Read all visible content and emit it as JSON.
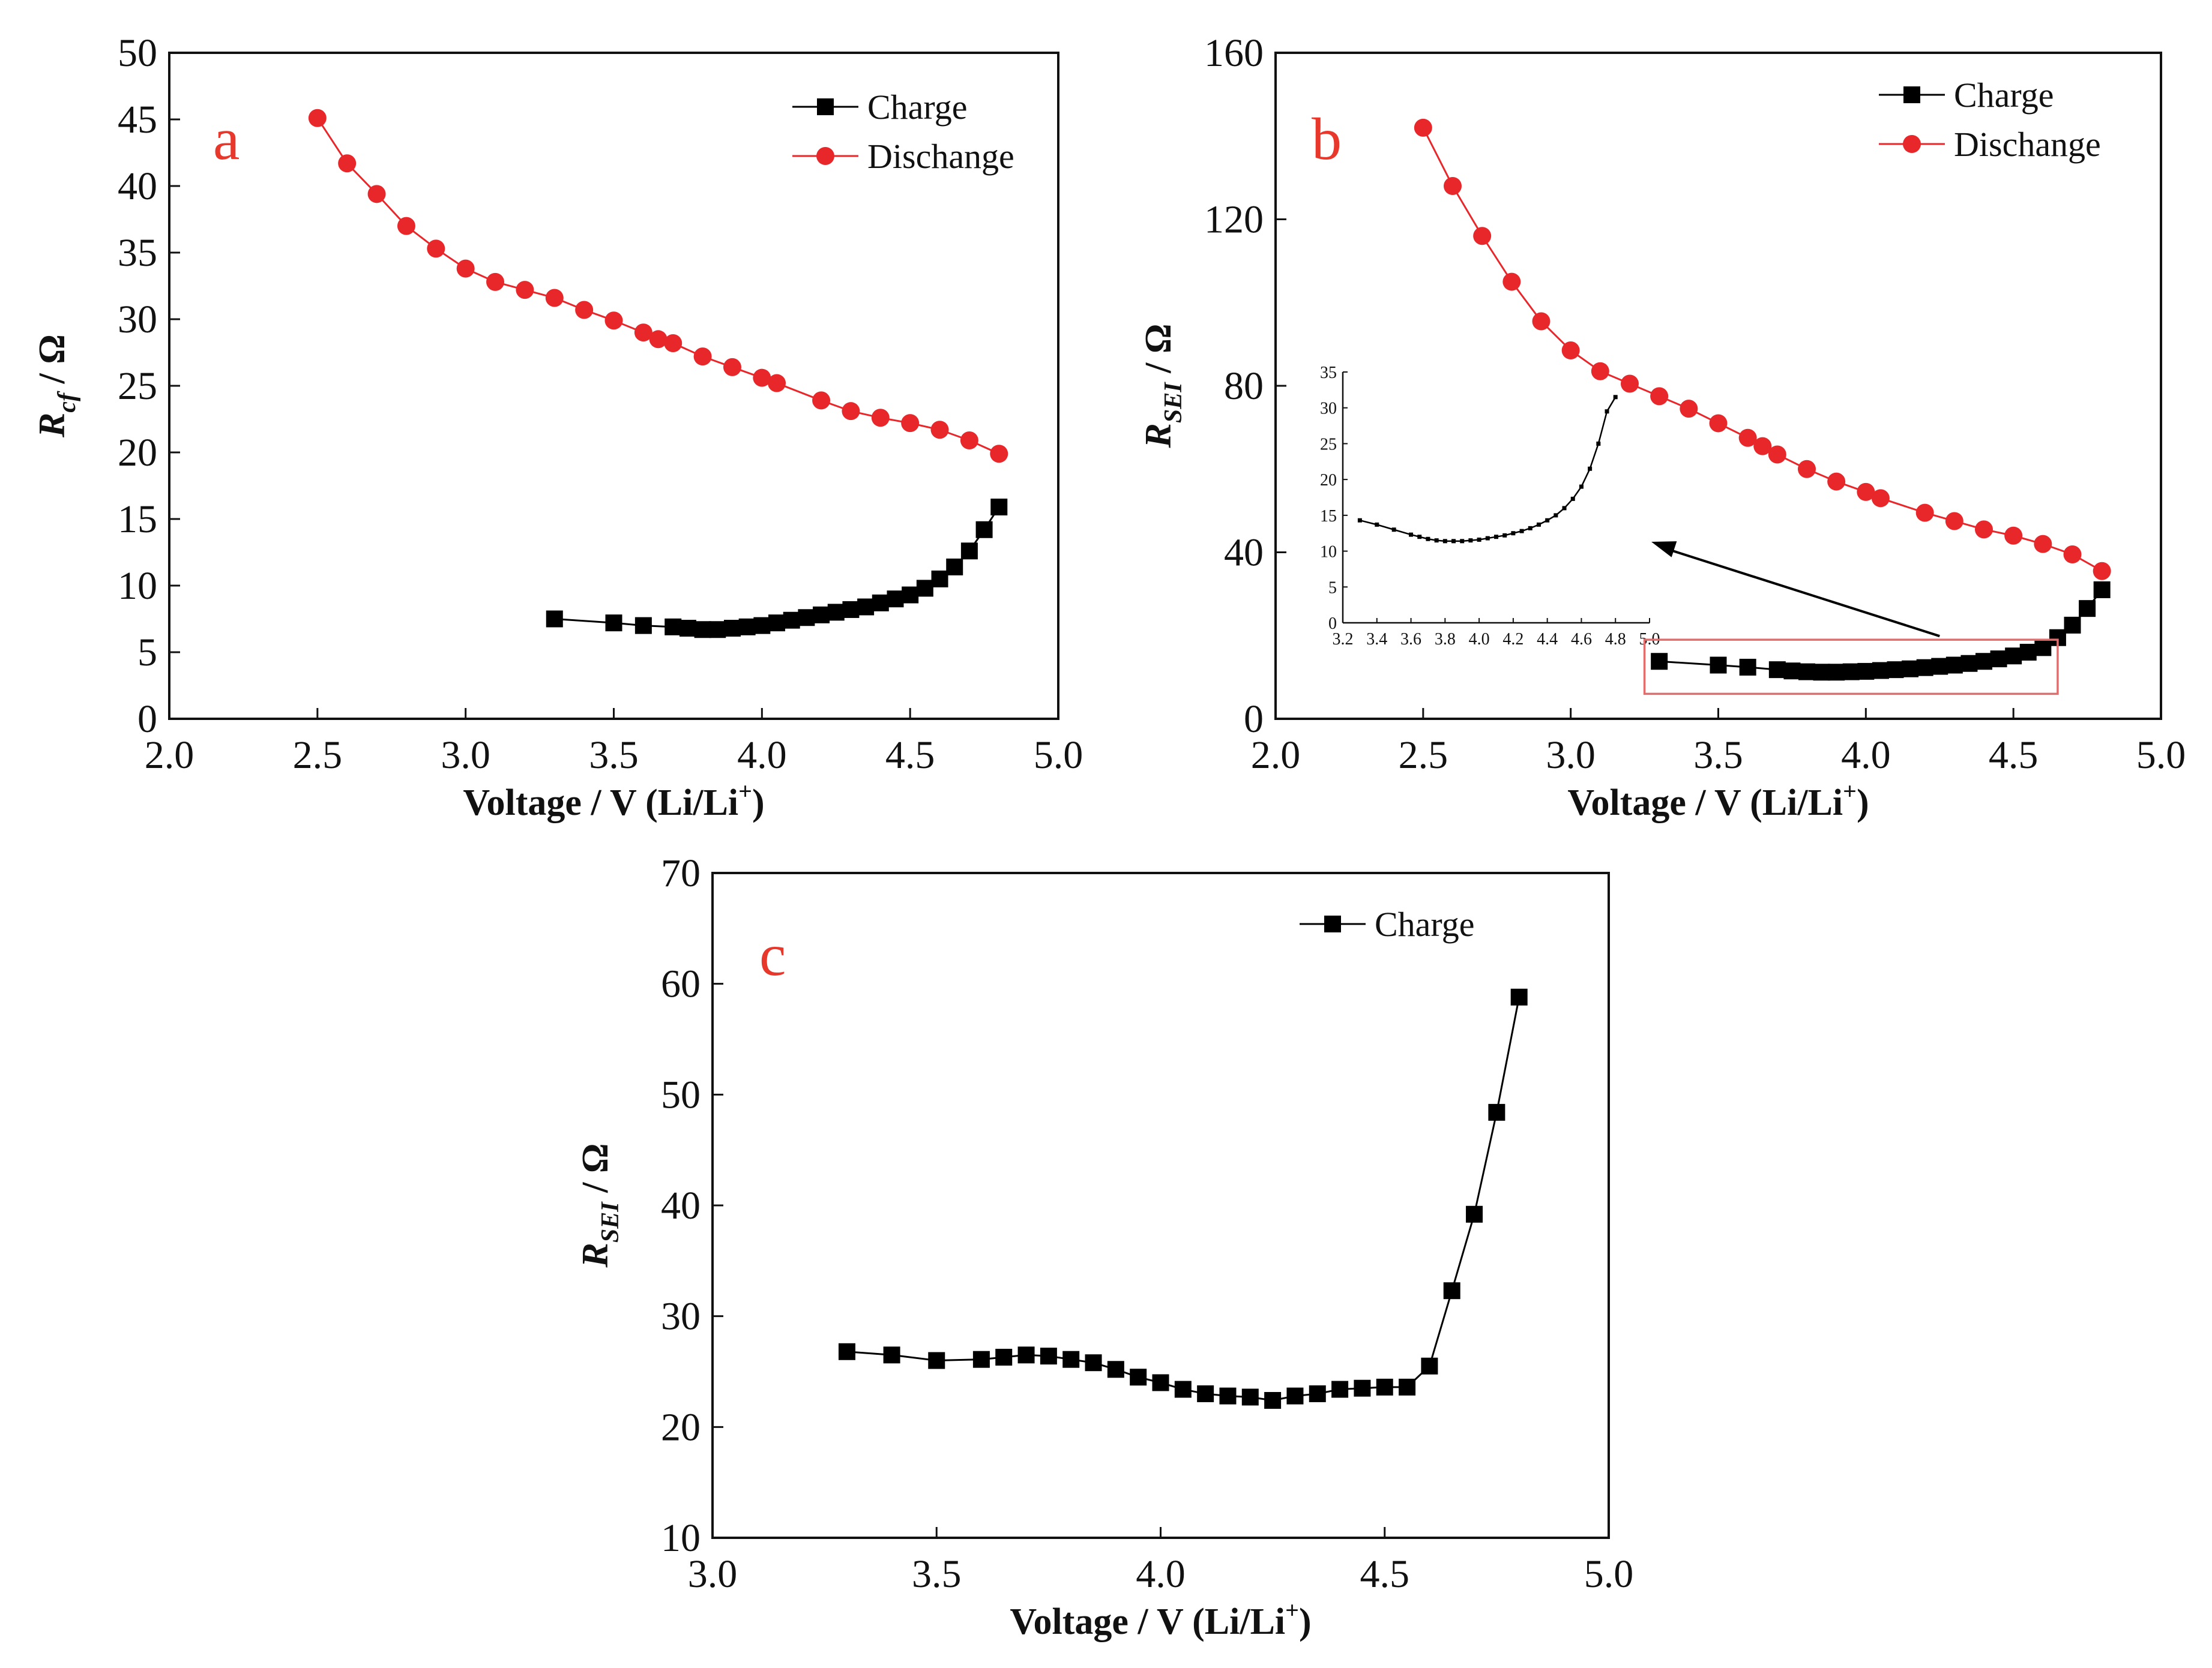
{
  "colors": {
    "charge": "#000000",
    "discharge": "#e8272b",
    "axis": "#111111",
    "panel_letter": "#e8372b",
    "inset_box": "#e26d6d"
  },
  "chart_data": [
    {
      "id": "a",
      "type": "line",
      "panel_letter": "a",
      "xlabel": "Voltage / V (Li/Li+)",
      "ylabel": "Rcf / Ω",
      "ylabel_main": "R",
      "ylabel_sub": "cf",
      "ylabel_tail": " / Ω",
      "xlabel_main": "Voltage / V (Li/Li",
      "xlabel_sup": "+",
      "xlabel_tail": ")",
      "xlim": [
        2.0,
        5.0
      ],
      "ylim": [
        0,
        50
      ],
      "xticks": [
        "2.0",
        "2.5",
        "3.0",
        "3.5",
        "4.0",
        "4.5",
        "5.0"
      ],
      "yticks": [
        "0",
        "5",
        "10",
        "15",
        "20",
        "25",
        "30",
        "35",
        "40",
        "45",
        "50"
      ],
      "legend_position": "top-right",
      "series": [
        {
          "name": "Charge",
          "marker": "square",
          "color": "#000000",
          "x": [
            3.3,
            3.5,
            3.6,
            3.7,
            3.75,
            3.8,
            3.85,
            3.9,
            3.95,
            4.0,
            4.05,
            4.1,
            4.15,
            4.2,
            4.25,
            4.3,
            4.35,
            4.4,
            4.45,
            4.5,
            4.55,
            4.6,
            4.65,
            4.7,
            4.75,
            4.8
          ],
          "y": [
            7.5,
            7.2,
            7.0,
            6.9,
            6.8,
            6.7,
            6.7,
            6.8,
            6.9,
            7.0,
            7.2,
            7.4,
            7.6,
            7.8,
            8.0,
            8.2,
            8.4,
            8.7,
            9.0,
            9.3,
            9.8,
            10.5,
            11.4,
            12.6,
            14.2,
            15.9
          ]
        },
        {
          "name": "Dischange",
          "marker": "circle",
          "color": "#e8272b",
          "x": [
            2.5,
            2.6,
            2.7,
            2.8,
            2.9,
            3.0,
            3.1,
            3.2,
            3.3,
            3.4,
            3.5,
            3.6,
            3.65,
            3.7,
            3.8,
            3.9,
            4.0,
            4.05,
            4.2,
            4.3,
            4.4,
            4.5,
            4.6,
            4.7,
            4.8
          ],
          "y": [
            45.1,
            41.7,
            39.4,
            37.0,
            35.3,
            33.8,
            32.8,
            32.2,
            31.6,
            30.7,
            29.9,
            29.0,
            28.5,
            28.2,
            27.2,
            26.4,
            25.6,
            25.2,
            23.9,
            23.1,
            22.6,
            22.2,
            21.7,
            20.9,
            19.9
          ]
        }
      ]
    },
    {
      "id": "b",
      "type": "line",
      "panel_letter": "b",
      "xlabel": "Voltage / V (Li/Li+)",
      "ylabel": "RSEI / Ω",
      "ylabel_main": "R",
      "ylabel_sub": "SEI",
      "ylabel_tail": " / Ω",
      "xlabel_main": "Voltage / V (Li/Li",
      "xlabel_sup": "+",
      "xlabel_tail": ")",
      "xlim": [
        2.0,
        5.0
      ],
      "ylim": [
        0,
        160
      ],
      "xticks": [
        "2.0",
        "2.5",
        "3.0",
        "3.5",
        "4.0",
        "4.5",
        "5.0"
      ],
      "yticks": [
        "0",
        "40",
        "80",
        "120",
        "160"
      ],
      "legend_position": "top-right",
      "series": [
        {
          "name": "Charge",
          "marker": "square",
          "color": "#000000",
          "x": [
            3.3,
            3.5,
            3.6,
            3.7,
            3.75,
            3.8,
            3.85,
            3.9,
            3.95,
            4.0,
            4.05,
            4.1,
            4.15,
            4.2,
            4.25,
            4.3,
            4.35,
            4.4,
            4.45,
            4.5,
            4.55,
            4.6,
            4.65,
            4.7,
            4.75,
            4.8
          ],
          "y": [
            13.8,
            12.9,
            12.4,
            11.8,
            11.5,
            11.3,
            11.2,
            11.2,
            11.3,
            11.4,
            11.6,
            11.8,
            12.0,
            12.3,
            12.6,
            12.9,
            13.3,
            13.8,
            14.4,
            15.1,
            16.0,
            17.1,
            19.5,
            22.5,
            26.5,
            31.0
          ]
        },
        {
          "name": "Dischange",
          "marker": "circle",
          "color": "#e8272b",
          "x": [
            2.5,
            2.6,
            2.7,
            2.8,
            2.9,
            3.0,
            3.1,
            3.2,
            3.3,
            3.4,
            3.5,
            3.6,
            3.65,
            3.7,
            3.8,
            3.9,
            4.0,
            4.05,
            4.2,
            4.3,
            4.4,
            4.5,
            4.6,
            4.7,
            4.8
          ],
          "y": [
            142,
            128,
            116,
            105,
            95.5,
            88.5,
            83.5,
            80.5,
            77.5,
            74.5,
            71.0,
            67.5,
            65.5,
            63.5,
            60.0,
            57.0,
            54.5,
            53.0,
            49.5,
            47.5,
            45.5,
            44.0,
            42.0,
            39.5,
            35.5
          ]
        }
      ],
      "inset": {
        "xlim": [
          3.2,
          5.0
        ],
        "ylim": [
          0,
          35
        ],
        "xticks": [
          "3.2",
          "3.4",
          "3.6",
          "3.8",
          "4.0",
          "4.2",
          "4.4",
          "4.6",
          "4.8",
          "5.0"
        ],
        "yticks": [
          "0",
          "5",
          "10",
          "15",
          "20",
          "25",
          "30",
          "35"
        ],
        "zoom_x_range": [
          3.25,
          4.65
        ],
        "zoom_y_range": [
          6,
          19
        ],
        "x": [
          3.3,
          3.4,
          3.5,
          3.6,
          3.65,
          3.7,
          3.75,
          3.8,
          3.85,
          3.9,
          3.95,
          4.0,
          4.05,
          4.1,
          4.15,
          4.2,
          4.25,
          4.3,
          4.35,
          4.4,
          4.45,
          4.5,
          4.55,
          4.6,
          4.65,
          4.7,
          4.75,
          4.8
        ],
        "y": [
          14.3,
          13.7,
          13.0,
          12.3,
          12.0,
          11.7,
          11.5,
          11.4,
          11.4,
          11.4,
          11.5,
          11.6,
          11.8,
          12.0,
          12.2,
          12.5,
          12.8,
          13.2,
          13.7,
          14.3,
          15.0,
          16.0,
          17.3,
          19.0,
          21.5,
          25.0,
          29.5,
          31.5
        ]
      }
    },
    {
      "id": "c",
      "type": "line",
      "panel_letter": "c",
      "xlabel": "Voltage / V (Li/Li+)",
      "ylabel": "RSEI / Ω",
      "ylabel_main": "R",
      "ylabel_sub": "SEI",
      "ylabel_tail": " / Ω",
      "xlabel_main": "Voltage / V (Li/Li",
      "xlabel_sup": "+",
      "xlabel_tail": ")",
      "xlim": [
        3.0,
        5.0
      ],
      "ylim": [
        10,
        70
      ],
      "xticks": [
        "3.0",
        "3.5",
        "4.0",
        "4.5",
        "5.0"
      ],
      "yticks": [
        "10",
        "20",
        "30",
        "40",
        "50",
        "60",
        "70"
      ],
      "legend_position": "top-right",
      "series": [
        {
          "name": "Charge",
          "marker": "square",
          "color": "#000000",
          "x": [
            3.3,
            3.4,
            3.5,
            3.6,
            3.65,
            3.7,
            3.75,
            3.8,
            3.85,
            3.9,
            3.95,
            4.0,
            4.05,
            4.1,
            4.15,
            4.2,
            4.25,
            4.3,
            4.35,
            4.4,
            4.45,
            4.5,
            4.55,
            4.6,
            4.65,
            4.7,
            4.75,
            4.8
          ],
          "y": [
            26.8,
            26.5,
            26.0,
            26.1,
            26.3,
            26.5,
            26.4,
            26.1,
            25.8,
            25.2,
            24.5,
            24.0,
            23.4,
            23.0,
            22.8,
            22.7,
            22.4,
            22.8,
            23.0,
            23.4,
            23.5,
            23.6,
            23.6,
            25.5,
            32.3,
            39.2,
            48.4,
            58.8
          ]
        }
      ]
    }
  ]
}
